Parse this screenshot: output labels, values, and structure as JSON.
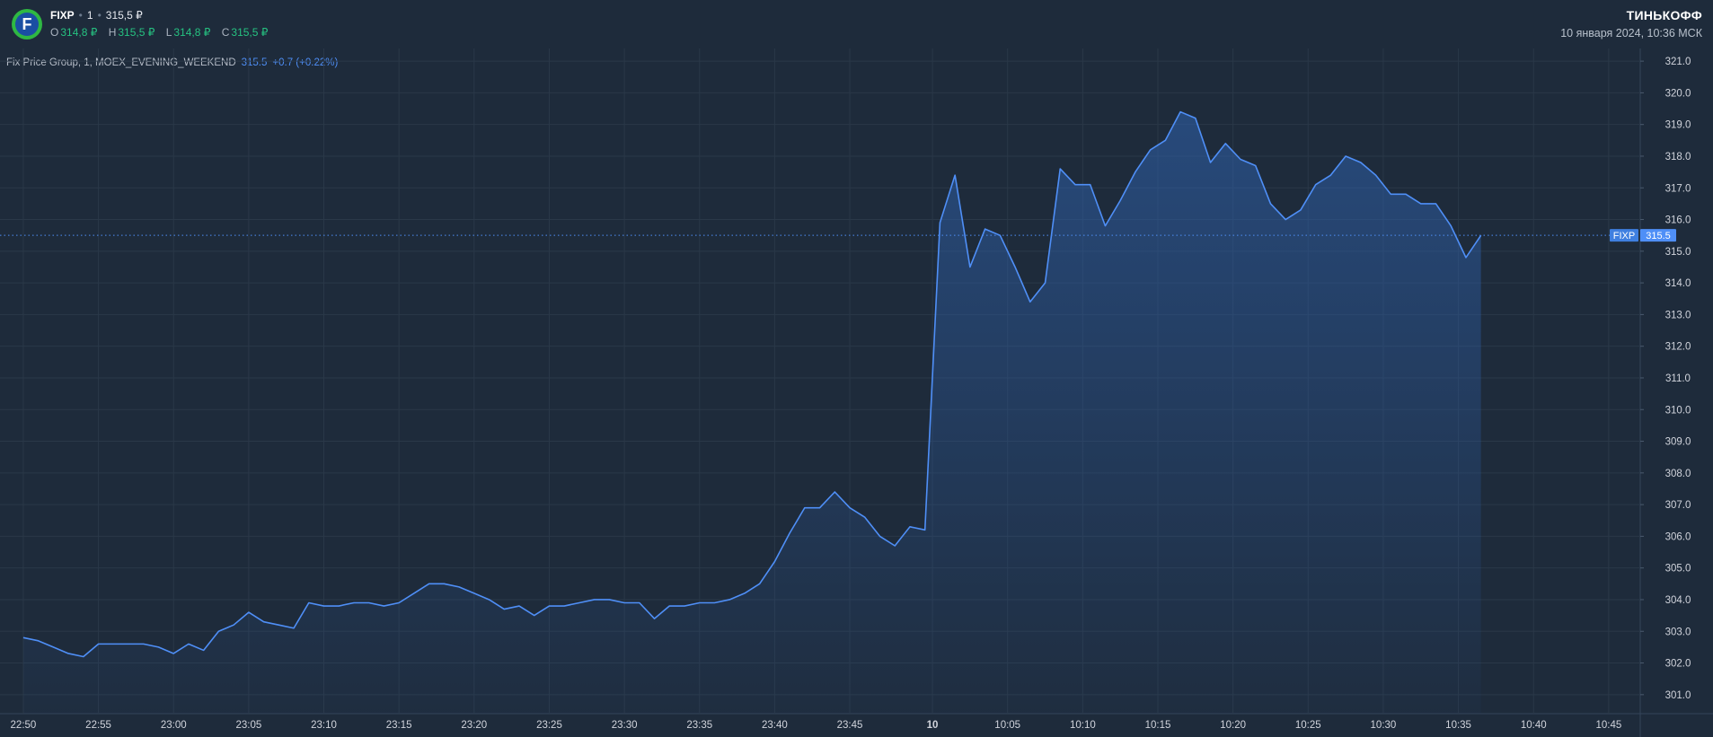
{
  "header": {
    "ticker": "FIXP",
    "interval": "1",
    "price": "315,5 ₽",
    "ohlc": [
      {
        "label": "O",
        "value": "314,8 ₽"
      },
      {
        "label": "H",
        "value": "315,5 ₽"
      },
      {
        "label": "L",
        "value": "314,8 ₽"
      },
      {
        "label": "C",
        "value": "315,5 ₽"
      }
    ],
    "brand": "ТИНЬКОФФ",
    "datetime": "10 января 2024, 10:36 МСК"
  },
  "series_title": {
    "name": "Fix Price Group, 1, MOEX_EVENING_WEEKEND",
    "last": "315.5",
    "change": "+0.7 (+0.22%)"
  },
  "price_label": {
    "ticker": "FIXP",
    "value": "315.5"
  },
  "colors": {
    "background": "#1e2b3b",
    "line": "#4f8ff7",
    "up": "#26c281",
    "grid": "#2a3848",
    "axis_text": "#d1d4dc",
    "logo_ring": "#2fb843",
    "logo_fill": "#1a4fa3"
  },
  "logo_icon": "fixprice-logo-icon",
  "chart_data": {
    "type": "area",
    "title": "Fix Price Group, 1, MOEX_EVENING_WEEKEND",
    "ylim": [
      300.4,
      321.4
    ],
    "y_ticks": [
      "321.0",
      "320.0",
      "319.0",
      "318.0",
      "317.0",
      "316.0",
      "315.0",
      "314.0",
      "313.0",
      "312.0",
      "311.0",
      "310.0",
      "309.0",
      "308.0",
      "307.0",
      "306.0",
      "305.0",
      "304.0",
      "303.0",
      "302.0",
      "301.0"
    ],
    "x_ticks": [
      "22:50",
      "22:55",
      "23:00",
      "23:05",
      "23:10",
      "23:15",
      "23:20",
      "23:25",
      "23:30",
      "23:35",
      "23:40",
      "23:45",
      "10",
      "10:05",
      "10:10",
      "10:15",
      "10:20",
      "10:25",
      "10:30",
      "10:35",
      "10:40",
      "10:45"
    ],
    "x_tick_index": [
      0,
      5,
      10,
      15,
      20,
      25,
      30,
      35,
      40,
      45,
      50,
      55,
      60.5,
      65.5,
      70.5,
      75.5,
      80.5,
      85.5,
      90.5,
      95.5,
      100.5,
      105.5
    ],
    "x_index_range": [
      -1.55,
      107.6
    ],
    "grid": true,
    "last_price": 315.5,
    "series": [
      {
        "name": "FIXP",
        "values": [
          302.8,
          302.7,
          302.5,
          302.3,
          302.2,
          302.6,
          302.6,
          302.6,
          302.6,
          302.5,
          302.3,
          302.6,
          302.4,
          303.0,
          303.2,
          303.6,
          303.3,
          303.2,
          303.1,
          303.9,
          303.8,
          303.8,
          303.9,
          303.9,
          303.8,
          303.9,
          304.2,
          304.5,
          304.5,
          304.4,
          304.2,
          304.0,
          303.7,
          303.8,
          303.5,
          303.8,
          303.8,
          303.9,
          304.0,
          304.0,
          303.9,
          303.9,
          303.4,
          303.8,
          303.8,
          303.9,
          303.9,
          304.0,
          304.2,
          304.5,
          305.2,
          306.1,
          306.9,
          306.9,
          307.4,
          306.9,
          306.6,
          306.0,
          305.7,
          306.3,
          306.2,
          315.9,
          317.4,
          314.5,
          315.7,
          315.5,
          314.5,
          313.4,
          314.0,
          317.6,
          317.1,
          317.1,
          315.8,
          316.6,
          317.5,
          318.2,
          318.5,
          319.4,
          319.2,
          317.8,
          318.4,
          317.9,
          317.7,
          316.5,
          316.0,
          316.3,
          317.1,
          317.4,
          318.0,
          317.8,
          317.4,
          316.8,
          316.8,
          316.5,
          316.5,
          315.8,
          314.8,
          315.5
        ]
      }
    ]
  }
}
